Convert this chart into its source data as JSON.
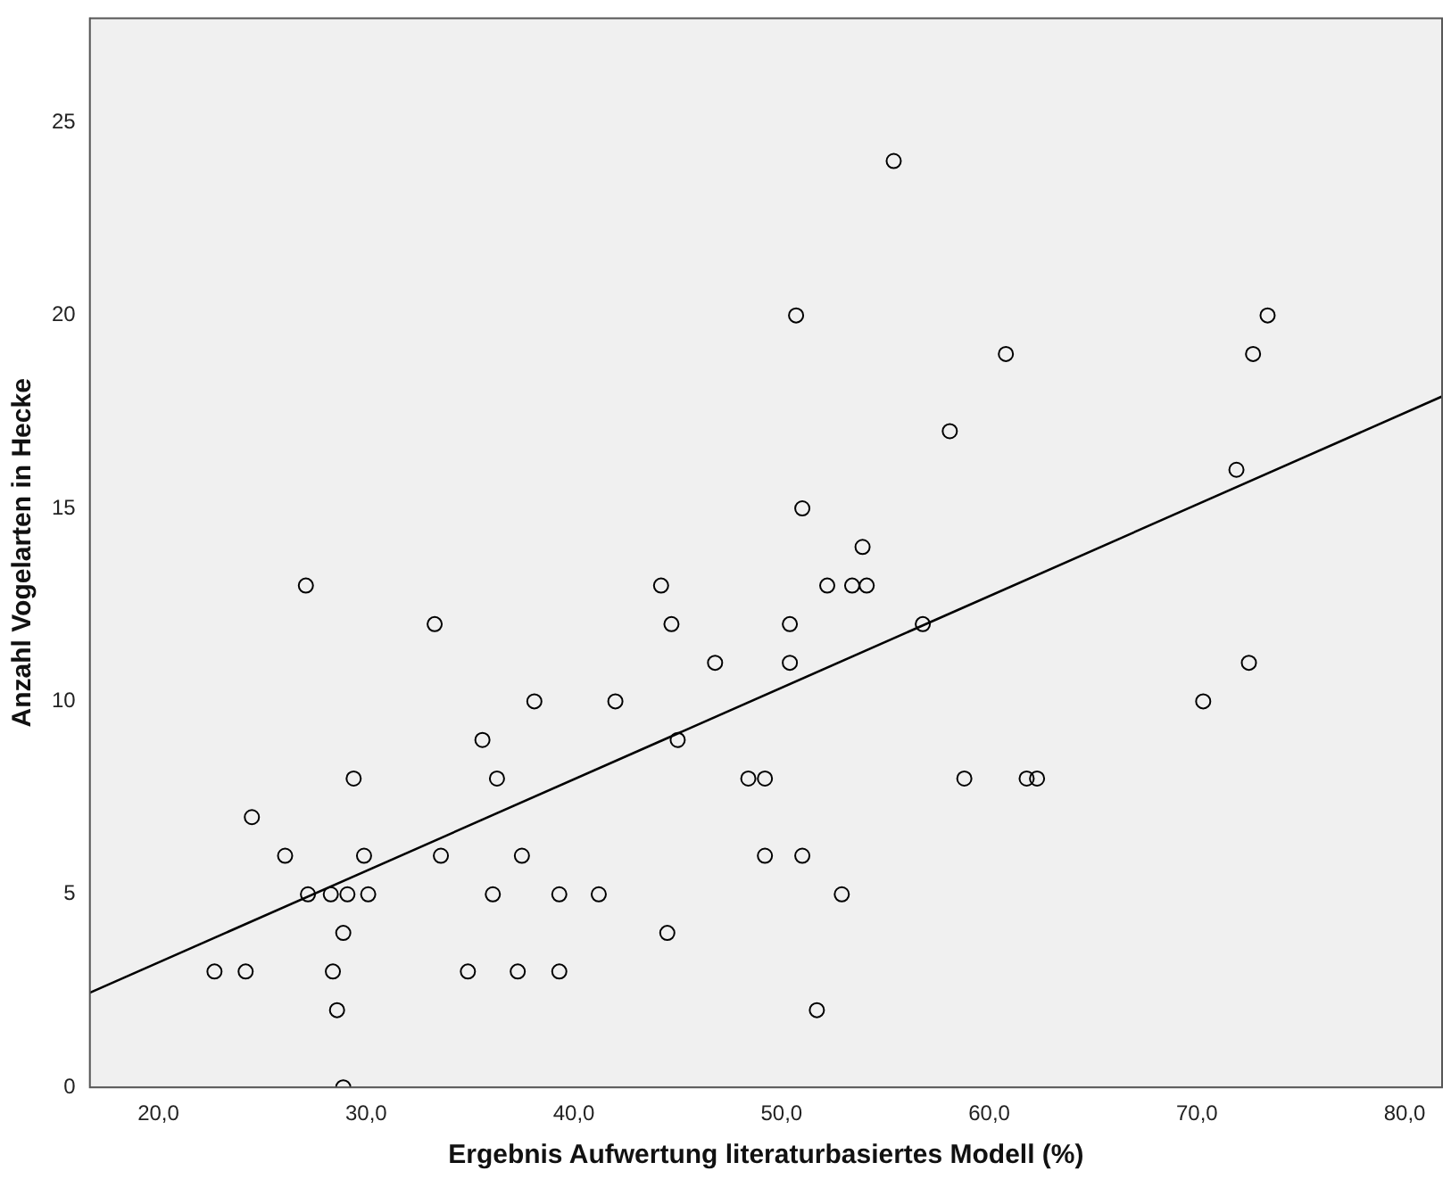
{
  "chart_data": {
    "type": "scatter",
    "xlabel": "Ergebnis Aufwertung literaturbasiertes Modell (%)",
    "ylabel": "Anzahl Vogelarten in Hecke",
    "xlim": [
      16.7,
      81.8
    ],
    "ylim": [
      0,
      27.7
    ],
    "xticks": [
      {
        "value": 20,
        "label": "20,0"
      },
      {
        "value": 30,
        "label": "30,0"
      },
      {
        "value": 40,
        "label": "40,0"
      },
      {
        "value": 50,
        "label": "50,0"
      },
      {
        "value": 60,
        "label": "60,0"
      },
      {
        "value": 70,
        "label": "70,0"
      },
      {
        "value": 80,
        "label": "80,0"
      }
    ],
    "yticks": [
      0,
      5,
      10,
      15,
      20,
      25
    ],
    "series": [
      {
        "color": "#000000",
        "marker": "circle",
        "x": [
          22.7,
          24.2,
          24.5,
          26.1,
          27.1,
          27.2,
          28.3,
          28.4,
          28.6,
          28.9,
          28.9,
          29.1,
          29.4,
          29.9,
          30.1,
          33.3,
          33.6,
          34.9,
          35.6,
          36.1,
          36.3,
          37.3,
          37.5,
          38.1,
          39.3,
          39.3,
          41.2,
          42.0,
          44.2,
          44.5,
          44.7,
          45.0,
          46.8,
          48.4,
          49.2,
          49.2,
          50.4,
          50.4,
          50.7,
          51.0,
          51.0,
          51.7,
          52.2,
          52.9,
          53.4,
          53.9,
          54.1,
          55.4,
          56.8,
          58.1,
          58.8,
          60.8,
          61.8,
          62.3,
          70.3,
          71.9,
          72.5,
          72.7,
          73.4
        ],
        "values": [
          3,
          3,
          7,
          6,
          13,
          5,
          5,
          3,
          2,
          4,
          0,
          5,
          8,
          6,
          5,
          12,
          6,
          3,
          9,
          5,
          8,
          3,
          6,
          10,
          5,
          3,
          5,
          10,
          13,
          4,
          12,
          9,
          11,
          8,
          8,
          6,
          12,
          11,
          20,
          15,
          6,
          2,
          13,
          5,
          13,
          14,
          13,
          24,
          12,
          17,
          8,
          19,
          8,
          8,
          10,
          16,
          11,
          19,
          20
        ]
      },
      {
        "type": "line",
        "color": "#000000",
        "x": [
          16.7,
          81.8
        ],
        "values": [
          2.45,
          17.9
        ]
      }
    ]
  }
}
